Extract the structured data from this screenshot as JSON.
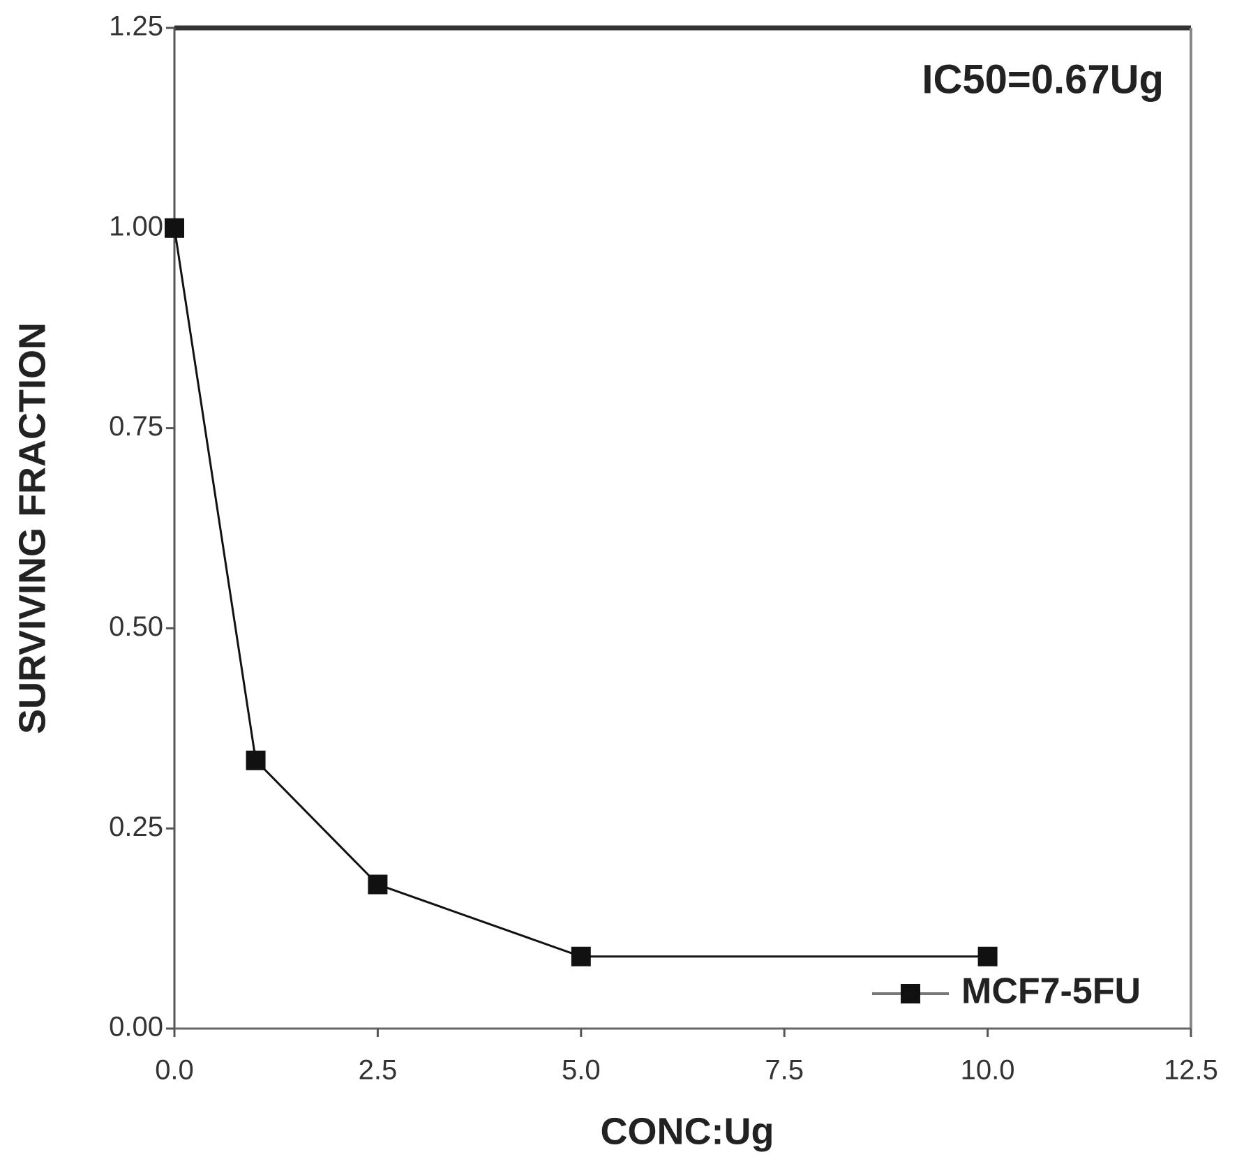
{
  "chart_data": {
    "type": "line",
    "x_label": "CONC:Ug",
    "y_label": "SURVIVING FRACTION",
    "annotation": "IC50=0.67Ug",
    "x": [
      0,
      1,
      2.5,
      5,
      10
    ],
    "series": [
      {
        "name": "MCF7-5FU",
        "color": "#111111",
        "values": [
          1.0,
          0.335,
          0.18,
          0.09,
          0.09
        ]
      }
    ],
    "xlim": [
      0,
      12.5
    ],
    "xticks": [
      {
        "value": 0,
        "label": "0.0"
      },
      2.5,
      {
        "value": 5,
        "label": "5.0"
      },
      7.5,
      {
        "value": 10,
        "label": "10.0"
      },
      12.5
    ],
    "ylim": [
      0,
      1.25
    ],
    "yticks": [
      {
        "value": 0,
        "label": "0.00"
      },
      0.25,
      {
        "value": 0.5,
        "label": "0.50"
      },
      0.75,
      {
        "value": 1,
        "label": "1.00"
      },
      1.25
    ],
    "grid": false,
    "legend": "lower right"
  }
}
